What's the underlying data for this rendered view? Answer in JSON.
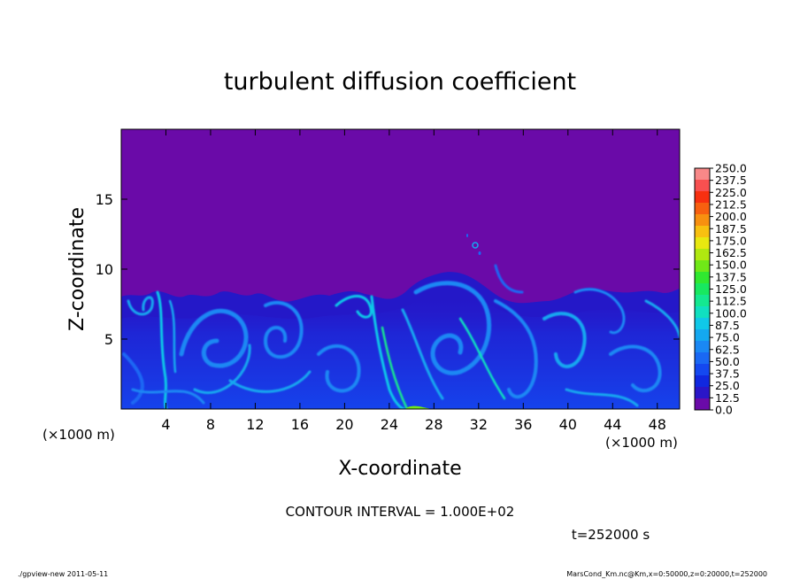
{
  "chart_data": {
    "type": "heatmap",
    "title": "turbulent diffusion coefficient",
    "xlabel": "X-coordinate",
    "ylabel": "Z-coordinate",
    "x_unit": "(×1000 m)",
    "y_unit": "(×1000 m)",
    "xlim": [
      0,
      50
    ],
    "ylim": [
      0,
      20
    ],
    "x_ticks": [
      4,
      8,
      12,
      16,
      20,
      24,
      28,
      32,
      36,
      40,
      44,
      48
    ],
    "y_ticks": [
      5,
      10,
      15
    ],
    "contour_interval_text": "CONTOUR INTERVAL = 1.000E+02",
    "time_text": "t=252000 s",
    "colorbar": {
      "levels": [
        0.0,
        12.5,
        25.0,
        37.5,
        50.0,
        62.5,
        75.0,
        87.5,
        100.0,
        112.5,
        125.0,
        137.5,
        150.0,
        162.5,
        175.0,
        187.5,
        200.0,
        212.5,
        225.0,
        237.5,
        250.0
      ],
      "labels": [
        "0.0",
        "12.5",
        "25.0",
        "37.5",
        "50.0",
        "62.5",
        "75.0",
        "87.5",
        "100.0",
        "112.5",
        "125.0",
        "137.5",
        "150.0",
        "162.5",
        "175.0",
        "187.5",
        "200.0",
        "212.5",
        "225.0",
        "237.5",
        "250.0"
      ],
      "colors": [
        "#6a0aa8",
        "#2a16c8",
        "#1028e0",
        "#1448f0",
        "#1a68f4",
        "#1a88f4",
        "#14a8f0",
        "#10c8e8",
        "#10e0c0",
        "#14e890",
        "#18e860",
        "#30e830",
        "#70e818",
        "#b0e810",
        "#e8e810",
        "#f8c010",
        "#f89010",
        "#f86010",
        "#f83010",
        "#f85050",
        "#f88888"
      ]
    },
    "background_value": 0.0,
    "field_description": "Near-zero values aloft; turbulent eddies with values up to ~100 below the mixed-layer top (about 8,000–10,000 m)"
  },
  "footer": {
    "left": "./gpview-new  2011-05-11",
    "right": "MarsCond_Km.nc@Km,x=0:50000,z=0:20000,t=252000"
  }
}
